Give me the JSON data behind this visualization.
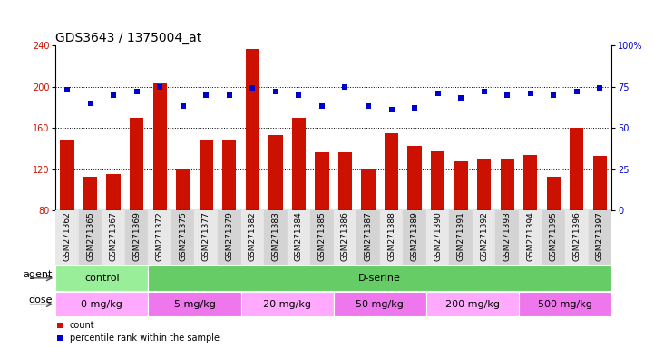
{
  "title": "GDS3643 / 1375004_at",
  "samples": [
    "GSM271362",
    "GSM271365",
    "GSM271367",
    "GSM271369",
    "GSM271372",
    "GSM271375",
    "GSM271377",
    "GSM271379",
    "GSM271382",
    "GSM271383",
    "GSM271384",
    "GSM271385",
    "GSM271386",
    "GSM271387",
    "GSM271388",
    "GSM271389",
    "GSM271390",
    "GSM271391",
    "GSM271392",
    "GSM271393",
    "GSM271394",
    "GSM271395",
    "GSM271396",
    "GSM271397"
  ],
  "counts": [
    148,
    113,
    115,
    170,
    203,
    121,
    148,
    148,
    236,
    153,
    170,
    136,
    136,
    120,
    155,
    143,
    137,
    128,
    130,
    130,
    134,
    113,
    160,
    133
  ],
  "percentile_ranks": [
    73,
    65,
    70,
    72,
    75,
    63,
    70,
    70,
    74,
    72,
    70,
    63,
    75,
    63,
    61,
    62,
    71,
    68,
    72,
    70,
    71,
    70,
    72,
    74
  ],
  "ylim_left": [
    80,
    240
  ],
  "ylim_right": [
    0,
    100
  ],
  "yticks_left": [
    80,
    120,
    160,
    200,
    240
  ],
  "yticks_right": [
    0,
    25,
    50,
    75,
    100
  ],
  "bar_color": "#cc1100",
  "dot_color": "#0000cc",
  "agent_row": [
    {
      "label": "control",
      "start": 0,
      "end": 4,
      "color": "#99ee99"
    },
    {
      "label": "D-serine",
      "start": 4,
      "end": 24,
      "color": "#66cc66"
    }
  ],
  "dose_row": [
    {
      "label": "0 mg/kg",
      "start": 0,
      "end": 4,
      "color": "#ffaaff"
    },
    {
      "label": "5 mg/kg",
      "start": 4,
      "end": 8,
      "color": "#ee77ee"
    },
    {
      "label": "20 mg/kg",
      "start": 8,
      "end": 12,
      "color": "#ffaaff"
    },
    {
      "label": "50 mg/kg",
      "start": 12,
      "end": 16,
      "color": "#ee77ee"
    },
    {
      "label": "200 mg/kg",
      "start": 16,
      "end": 20,
      "color": "#ffaaff"
    },
    {
      "label": "500 mg/kg",
      "start": 20,
      "end": 24,
      "color": "#ee77ee"
    }
  ],
  "legend_count_label": "count",
  "legend_pct_label": "percentile rank within the sample",
  "title_fontsize": 10,
  "tick_fontsize": 7,
  "label_fontsize": 8,
  "row_label_fontsize": 8,
  "xtick_fontsize": 6.5
}
